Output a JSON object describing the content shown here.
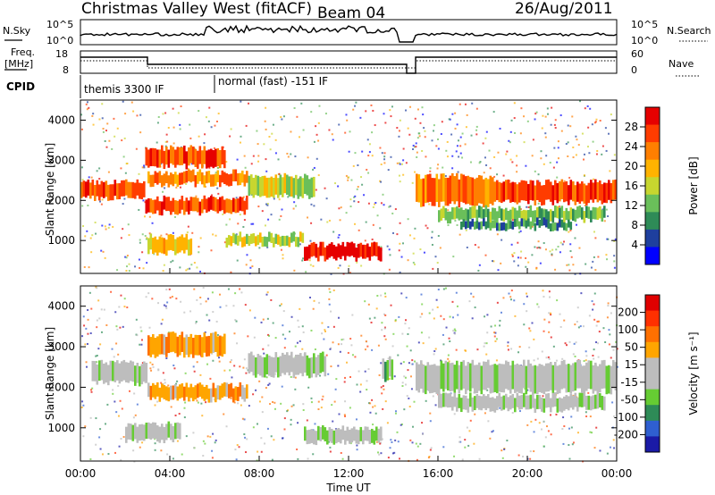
{
  "header": {
    "station": "Christmas Valley West (fitACF)",
    "beam": "Beam 04",
    "date": "26/Aug/2011"
  },
  "strip_panels": {
    "nsky_label": "N.Sky",
    "nsky_ticks": [
      "10^5",
      "10^0"
    ],
    "nsearch_label": "N.Search",
    "nsearch_ticks": [
      "10^5",
      "10^0"
    ],
    "freq_label_1": "Freq.",
    "freq_label_2": "[MHz]",
    "freq_ticks": [
      "18",
      "8"
    ],
    "nave_label": "Nave",
    "nave_ticks": [
      "60",
      "0"
    ],
    "cpid_label": "CPID",
    "cpid_modes": [
      "themis 3300 IF",
      "normal (fast) -151 IF"
    ]
  },
  "colors": {
    "power_scale": [
      "#0000ff",
      "#1e3f9e",
      "#2e8b57",
      "#6abf5a",
      "#c7d62f",
      "#ffb300",
      "#ff7f00",
      "#ff3c00",
      "#e60000"
    ],
    "velocity_scale": [
      "#1a1aa6",
      "#2f5fd0",
      "#2e8b57",
      "#66cc33",
      "#bdbdbd",
      "#bdbdbd",
      "#ffa500",
      "#ff7000",
      "#ff3000",
      "#e00000"
    ]
  },
  "chart_data": [
    {
      "type": "heatmap",
      "name": "power",
      "xlabel": "",
      "ylabel": "Slant Range [km]",
      "ylim": [
        180,
        4500
      ],
      "xlim_hours": [
        0,
        24
      ],
      "yticks": [
        "1000",
        "2000",
        "3000",
        "4000"
      ],
      "colorbar_label": "Power [dB]",
      "colorbar_ticks": [
        "28",
        "24",
        "20",
        "16",
        "12",
        "8",
        "4"
      ],
      "bands": [
        {
          "t": [
            0.0,
            2.9
          ],
          "r": [
            2050,
            2450
          ],
          "level": 7
        },
        {
          "t": [
            2.9,
            6.5
          ],
          "r": [
            2850,
            3300
          ],
          "level": 7
        },
        {
          "t": [
            3.0,
            7.5
          ],
          "r": [
            2400,
            2700
          ],
          "level": 6
        },
        {
          "t": [
            2.9,
            7.5
          ],
          "r": [
            1700,
            2050
          ],
          "level": 7
        },
        {
          "t": [
            7.5,
            10.5
          ],
          "r": [
            2100,
            2600
          ],
          "level": 4
        },
        {
          "t": [
            10.0,
            13.5
          ],
          "r": [
            550,
            900
          ],
          "level": 8
        },
        {
          "t": [
            3.0,
            5.0
          ],
          "r": [
            700,
            1100
          ],
          "level": 5
        },
        {
          "t": [
            6.5,
            10.0
          ],
          "r": [
            900,
            1150
          ],
          "level": 4
        },
        {
          "t": [
            15.0,
            18.5
          ],
          "r": [
            1900,
            2600
          ],
          "level": 6
        },
        {
          "t": [
            18.5,
            24.0
          ],
          "r": [
            1950,
            2450
          ],
          "level": 7
        },
        {
          "t": [
            16.0,
            23.5
          ],
          "r": [
            1500,
            1800
          ],
          "level": 3
        },
        {
          "t": [
            17.0,
            22.0
          ],
          "r": [
            1300,
            1500
          ],
          "level": 2
        }
      ]
    },
    {
      "type": "heatmap",
      "name": "velocity",
      "xlabel": "Time UT",
      "ylabel": "Slant Range [km]",
      "ylim": [
        180,
        4500
      ],
      "xlim_hours": [
        0,
        24
      ],
      "xticks": [
        "00:00",
        "04:00",
        "08:00",
        "12:00",
        "16:00",
        "20:00",
        "00:00"
      ],
      "yticks": [
        "1000",
        "2000",
        "3000",
        "4000"
      ],
      "colorbar_label": "Velocity [m s⁻¹]",
      "colorbar_ticks": [
        "200",
        "100",
        "50",
        "15",
        "-15",
        "-50",
        "-100",
        "-200"
      ],
      "bands": [
        {
          "t": [
            0.5,
            3.0
          ],
          "r": [
            2100,
            2600
          ],
          "level": 4
        },
        {
          "t": [
            3.0,
            6.5
          ],
          "r": [
            2800,
            3300
          ],
          "level": 6
        },
        {
          "t": [
            3.0,
            7.5
          ],
          "r": [
            1700,
            2050
          ],
          "level": 6
        },
        {
          "t": [
            7.5,
            11.0
          ],
          "r": [
            2300,
            2800
          ],
          "level": 4
        },
        {
          "t": [
            10.0,
            13.5
          ],
          "r": [
            650,
            1000
          ],
          "level": 4
        },
        {
          "t": [
            15.0,
            24.0
          ],
          "r": [
            1900,
            2600
          ],
          "level": 4
        },
        {
          "t": [
            16.0,
            23.5
          ],
          "r": [
            1450,
            1800
          ],
          "level": 4
        },
        {
          "t": [
            2.0,
            4.5
          ],
          "r": [
            700,
            1100
          ],
          "level": 4
        },
        {
          "t": [
            13.5,
            14.0
          ],
          "r": [
            2200,
            2700
          ],
          "level": 3
        }
      ]
    }
  ]
}
